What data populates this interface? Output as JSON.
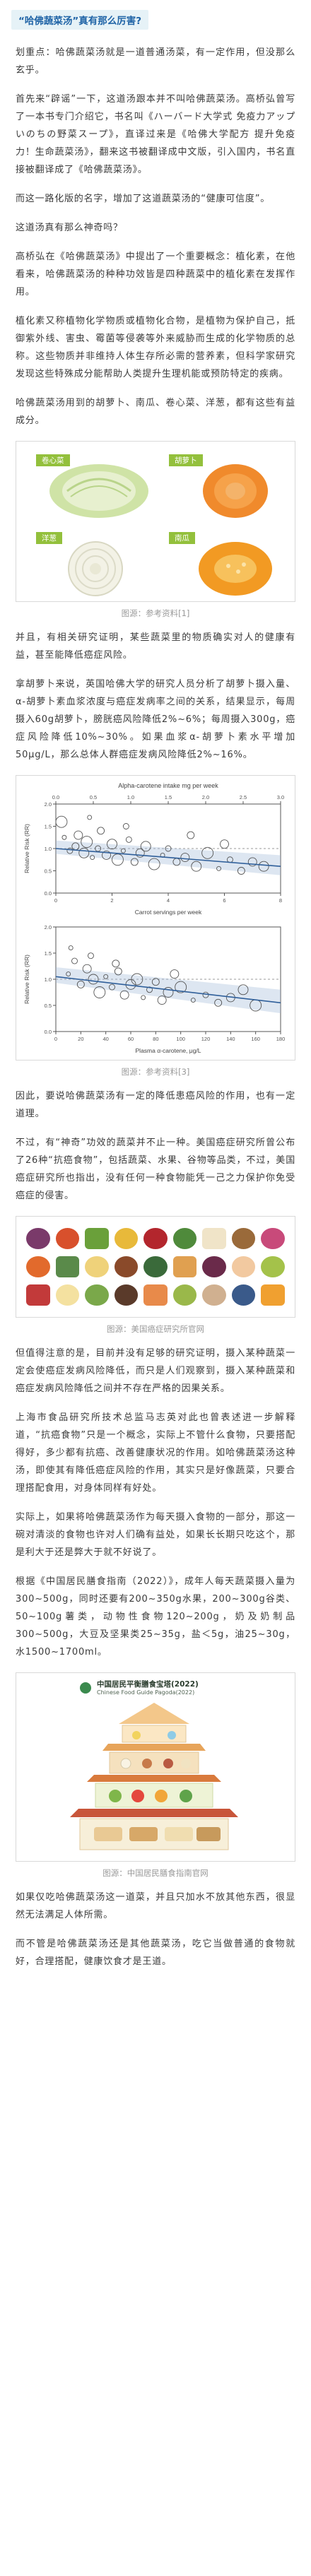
{
  "title": "“哈佛蔬菜汤”真有那么厉害?",
  "paragraphs": {
    "p1": "划重点：哈佛蔬菜汤就是一道普通汤菜，有一定作用，但没那么玄乎。",
    "p2": "首先来“辟谣”一下，这道汤跟本并不叫哈佛蔬菜汤。高桥弘曾写了一本书专门介绍它，书名叫《ハーバード大学式 免疫力アップいのちの野菜スープ》，直译过来是《哈佛大学配方 提升免疫力！生命蔬菜汤》，翻来这书被翻译成中文版，引入国内，书名直接被翻译成了《哈佛蔬菜汤》。",
    "p3": "而这一路化版的名字，增加了这道蔬菜汤的“健康可信度”。",
    "p4": "这道汤真有那么神奇吗？",
    "p5": "高桥弘在《哈佛蔬菜汤》中提出了一个重要概念：植化素，在他看来，哈佛蔬菜汤的种种功效皆是四种蔬菜中的植化素在发挥作用。",
    "p6": "植化素又称植物化学物质或植物化合物，是植物为保护自己，抵御紫外线、害虫、霉菌等侵袭等外来威胁而生成的化学物质的总称。这些物质并非维持人体生存所必需的营养素，但科学家研究发现这些特殊成分能帮助人类提升生理机能或预防特定的疾病。",
    "p7": "哈佛蔬菜汤用到的胡萝卜、南瓜、卷心菜、洋葱，都有这些有益成分。",
    "p8": "并且，有相关研究证明，某些蔬菜里的物质确实对人的健康有益，甚至能降低癌症风险。",
    "p9": "拿胡萝卜来说，英国哈佛大学的研究人员分析了胡萝卜摄入量、α-胡萝卜素血浆浓度与癌症发病率之间的关系，结果显示，每周摄入60g胡萝卜，膀胱癌风险降低2%~6%；每周摄入300g，癌症风险降低10%~30%。如果血浆α-胡萝卜素水平增加50μg/L，那么总体人群癌症发病风险降低2%~16%。",
    "p10": "因此，要说哈佛蔬菜汤有一定的降低患癌风险的作用，也有一定道理。",
    "p11": "不过，有“神奇”功效的蔬菜并不止一种。美国癌症研究所曾公布了26种“抗癌食物”，包括蔬菜、水果、谷物等品类，不过，美国癌症研究所也指出，没有任何一种食物能凭一己之力保护你免受癌症的侵害。",
    "p12": "但值得注意的是，目前并没有足够的研究证明，摄入某种蔬菜一定会使癌症发病风险降低，而只是人们观察到，摄入某种蔬菜和癌症发病风险降低之间并不存在严格的因果关系。",
    "p13": "上海市食品研究所技术总监马志英对此也曾表述进一步解释道，“抗癌食物”只是一个概念，实际上不管什么食物，只要搭配得好，多少都有抗癌、改善健康状况的作用。如哈佛蔬菜汤这种汤，即使其有降低癌症风险的作用，其实只是好像蔬菜，只要合理搭配食用，对身体同样有好处。",
    "p14": "实际上，如果将哈佛蔬菜汤作为每天摄入食物的一部分，那这一碗对清淡的食物也许对人们确有益处，如果长长期只吃这个，那是利大于还是弊大于就不好说了。",
    "p15": "根据《中国居民膳食指南（2022）》，成年人每天蔬菜摄入量为300~500g，同时还要有200~350g水果，200~300g谷类、50~100g薯类，动物性食物120~200g，奶及奶制品300~500g，大豆及坚果类25~35g，盐＜5g，油25~30g，水1500~1700ml。",
    "p16": "如果仅吃哈佛蔬菜汤这一道菜，并且只加水不放其他东西，很显然无法满足人体所需。",
    "p17": "而不管是哈佛蔬菜汤还是其他蔬菜汤，吃它当做普通的食物就好，合理搭配，健康饮食才是王道。"
  },
  "figures": {
    "veg": {
      "caption": "图源：参考资料[1]",
      "labels": [
        "卷心菜",
        "胡萝卜",
        "洋葱",
        "南瓜"
      ]
    },
    "chart": {
      "caption": "图源：参考资料[3]"
    },
    "tiles": {
      "caption": "图源：美国癌症研究所官网"
    },
    "pagoda": {
      "caption": "图源：中国居民膳食指南官网",
      "title_cn": "中国居民平衡膳食宝塔(2022)",
      "title_en": "Chinese Food Guide Pagoda(2022)"
    }
  },
  "chart_data": [
    {
      "type": "scatter",
      "title": "Alpha-carotene intake mg per week",
      "x_top_ticks": [
        "0.0",
        "0.5",
        "1.0",
        "1.5",
        "2.0",
        "2.5",
        "3.0"
      ],
      "xlabel": "Carrot servings per week",
      "ylabel": "Relative Risk (RR)",
      "xlim": [
        0,
        8
      ],
      "ylim": [
        0,
        2
      ],
      "xticks": [
        "0",
        "2",
        "4",
        "6",
        "8"
      ],
      "yticks": [
        "0.0",
        "0.5",
        "1.0",
        "1.5",
        "2.0"
      ],
      "points": [
        {
          "x": 0.3,
          "y": 1.25
        },
        {
          "x": 0.5,
          "y": 0.95
        },
        {
          "x": 0.7,
          "y": 1.05
        },
        {
          "x": 0.8,
          "y": 1.3
        },
        {
          "x": 1.0,
          "y": 0.9
        },
        {
          "x": 1.1,
          "y": 1.15
        },
        {
          "x": 1.3,
          "y": 0.8
        },
        {
          "x": 1.5,
          "y": 1.0
        },
        {
          "x": 1.6,
          "y": 1.4
        },
        {
          "x": 1.8,
          "y": 0.85
        },
        {
          "x": 2.0,
          "y": 1.1
        },
        {
          "x": 2.2,
          "y": 0.75
        },
        {
          "x": 2.4,
          "y": 0.95
        },
        {
          "x": 2.6,
          "y": 1.2
        },
        {
          "x": 2.8,
          "y": 0.7
        },
        {
          "x": 3.0,
          "y": 0.9
        },
        {
          "x": 3.2,
          "y": 1.05
        },
        {
          "x": 3.5,
          "y": 0.65
        },
        {
          "x": 3.8,
          "y": 0.85
        },
        {
          "x": 4.0,
          "y": 1.0
        },
        {
          "x": 4.3,
          "y": 0.7
        },
        {
          "x": 4.6,
          "y": 0.8
        },
        {
          "x": 5.0,
          "y": 0.6
        },
        {
          "x": 5.4,
          "y": 0.9
        },
        {
          "x": 5.8,
          "y": 0.55
        },
        {
          "x": 6.2,
          "y": 0.75
        },
        {
          "x": 6.6,
          "y": 0.5
        },
        {
          "x": 7.0,
          "y": 0.7
        },
        {
          "x": 7.4,
          "y": 0.6
        },
        {
          "x": 0.2,
          "y": 1.6
        },
        {
          "x": 1.2,
          "y": 1.7
        },
        {
          "x": 2.5,
          "y": 1.5
        },
        {
          "x": 4.8,
          "y": 1.3
        },
        {
          "x": 6.0,
          "y": 1.1
        }
      ],
      "trend": [
        [
          0,
          1.0
        ],
        [
          8,
          0.6
        ]
      ]
    },
    {
      "type": "scatter",
      "xlabel": "Plasma α-carotene, μg/L",
      "ylabel": "Relative Risk (RR)",
      "xlim": [
        0,
        180
      ],
      "ylim": [
        0,
        2
      ],
      "xticks": [
        "0",
        "20",
        "40",
        "60",
        "80",
        "100",
        "120",
        "140",
        "160",
        "180"
      ],
      "yticks": [
        "0.0",
        "0.5",
        "1.0",
        "1.5",
        "2.0"
      ],
      "points": [
        {
          "x": 10,
          "y": 1.1
        },
        {
          "x": 15,
          "y": 1.35
        },
        {
          "x": 20,
          "y": 0.9
        },
        {
          "x": 25,
          "y": 1.2
        },
        {
          "x": 30,
          "y": 1.0
        },
        {
          "x": 35,
          "y": 0.75
        },
        {
          "x": 40,
          "y": 1.05
        },
        {
          "x": 45,
          "y": 0.85
        },
        {
          "x": 50,
          "y": 1.15
        },
        {
          "x": 55,
          "y": 0.7
        },
        {
          "x": 60,
          "y": 0.9
        },
        {
          "x": 65,
          "y": 1.0
        },
        {
          "x": 70,
          "y": 0.65
        },
        {
          "x": 75,
          "y": 0.8
        },
        {
          "x": 80,
          "y": 0.95
        },
        {
          "x": 85,
          "y": 0.6
        },
        {
          "x": 90,
          "y": 0.75
        },
        {
          "x": 100,
          "y": 0.85
        },
        {
          "x": 110,
          "y": 0.6
        },
        {
          "x": 120,
          "y": 0.7
        },
        {
          "x": 130,
          "y": 0.55
        },
        {
          "x": 140,
          "y": 0.65
        },
        {
          "x": 150,
          "y": 0.8
        },
        {
          "x": 160,
          "y": 0.5
        },
        {
          "x": 12,
          "y": 1.6
        },
        {
          "x": 28,
          "y": 1.45
        },
        {
          "x": 48,
          "y": 1.3
        },
        {
          "x": 95,
          "y": 1.1
        }
      ],
      "trend": [
        [
          0,
          1.05
        ],
        [
          180,
          0.55
        ]
      ]
    }
  ],
  "colors": {
    "accent": "#1f63a6",
    "title_bg": "#e6f2f7",
    "veg_label": "#93c03c"
  }
}
